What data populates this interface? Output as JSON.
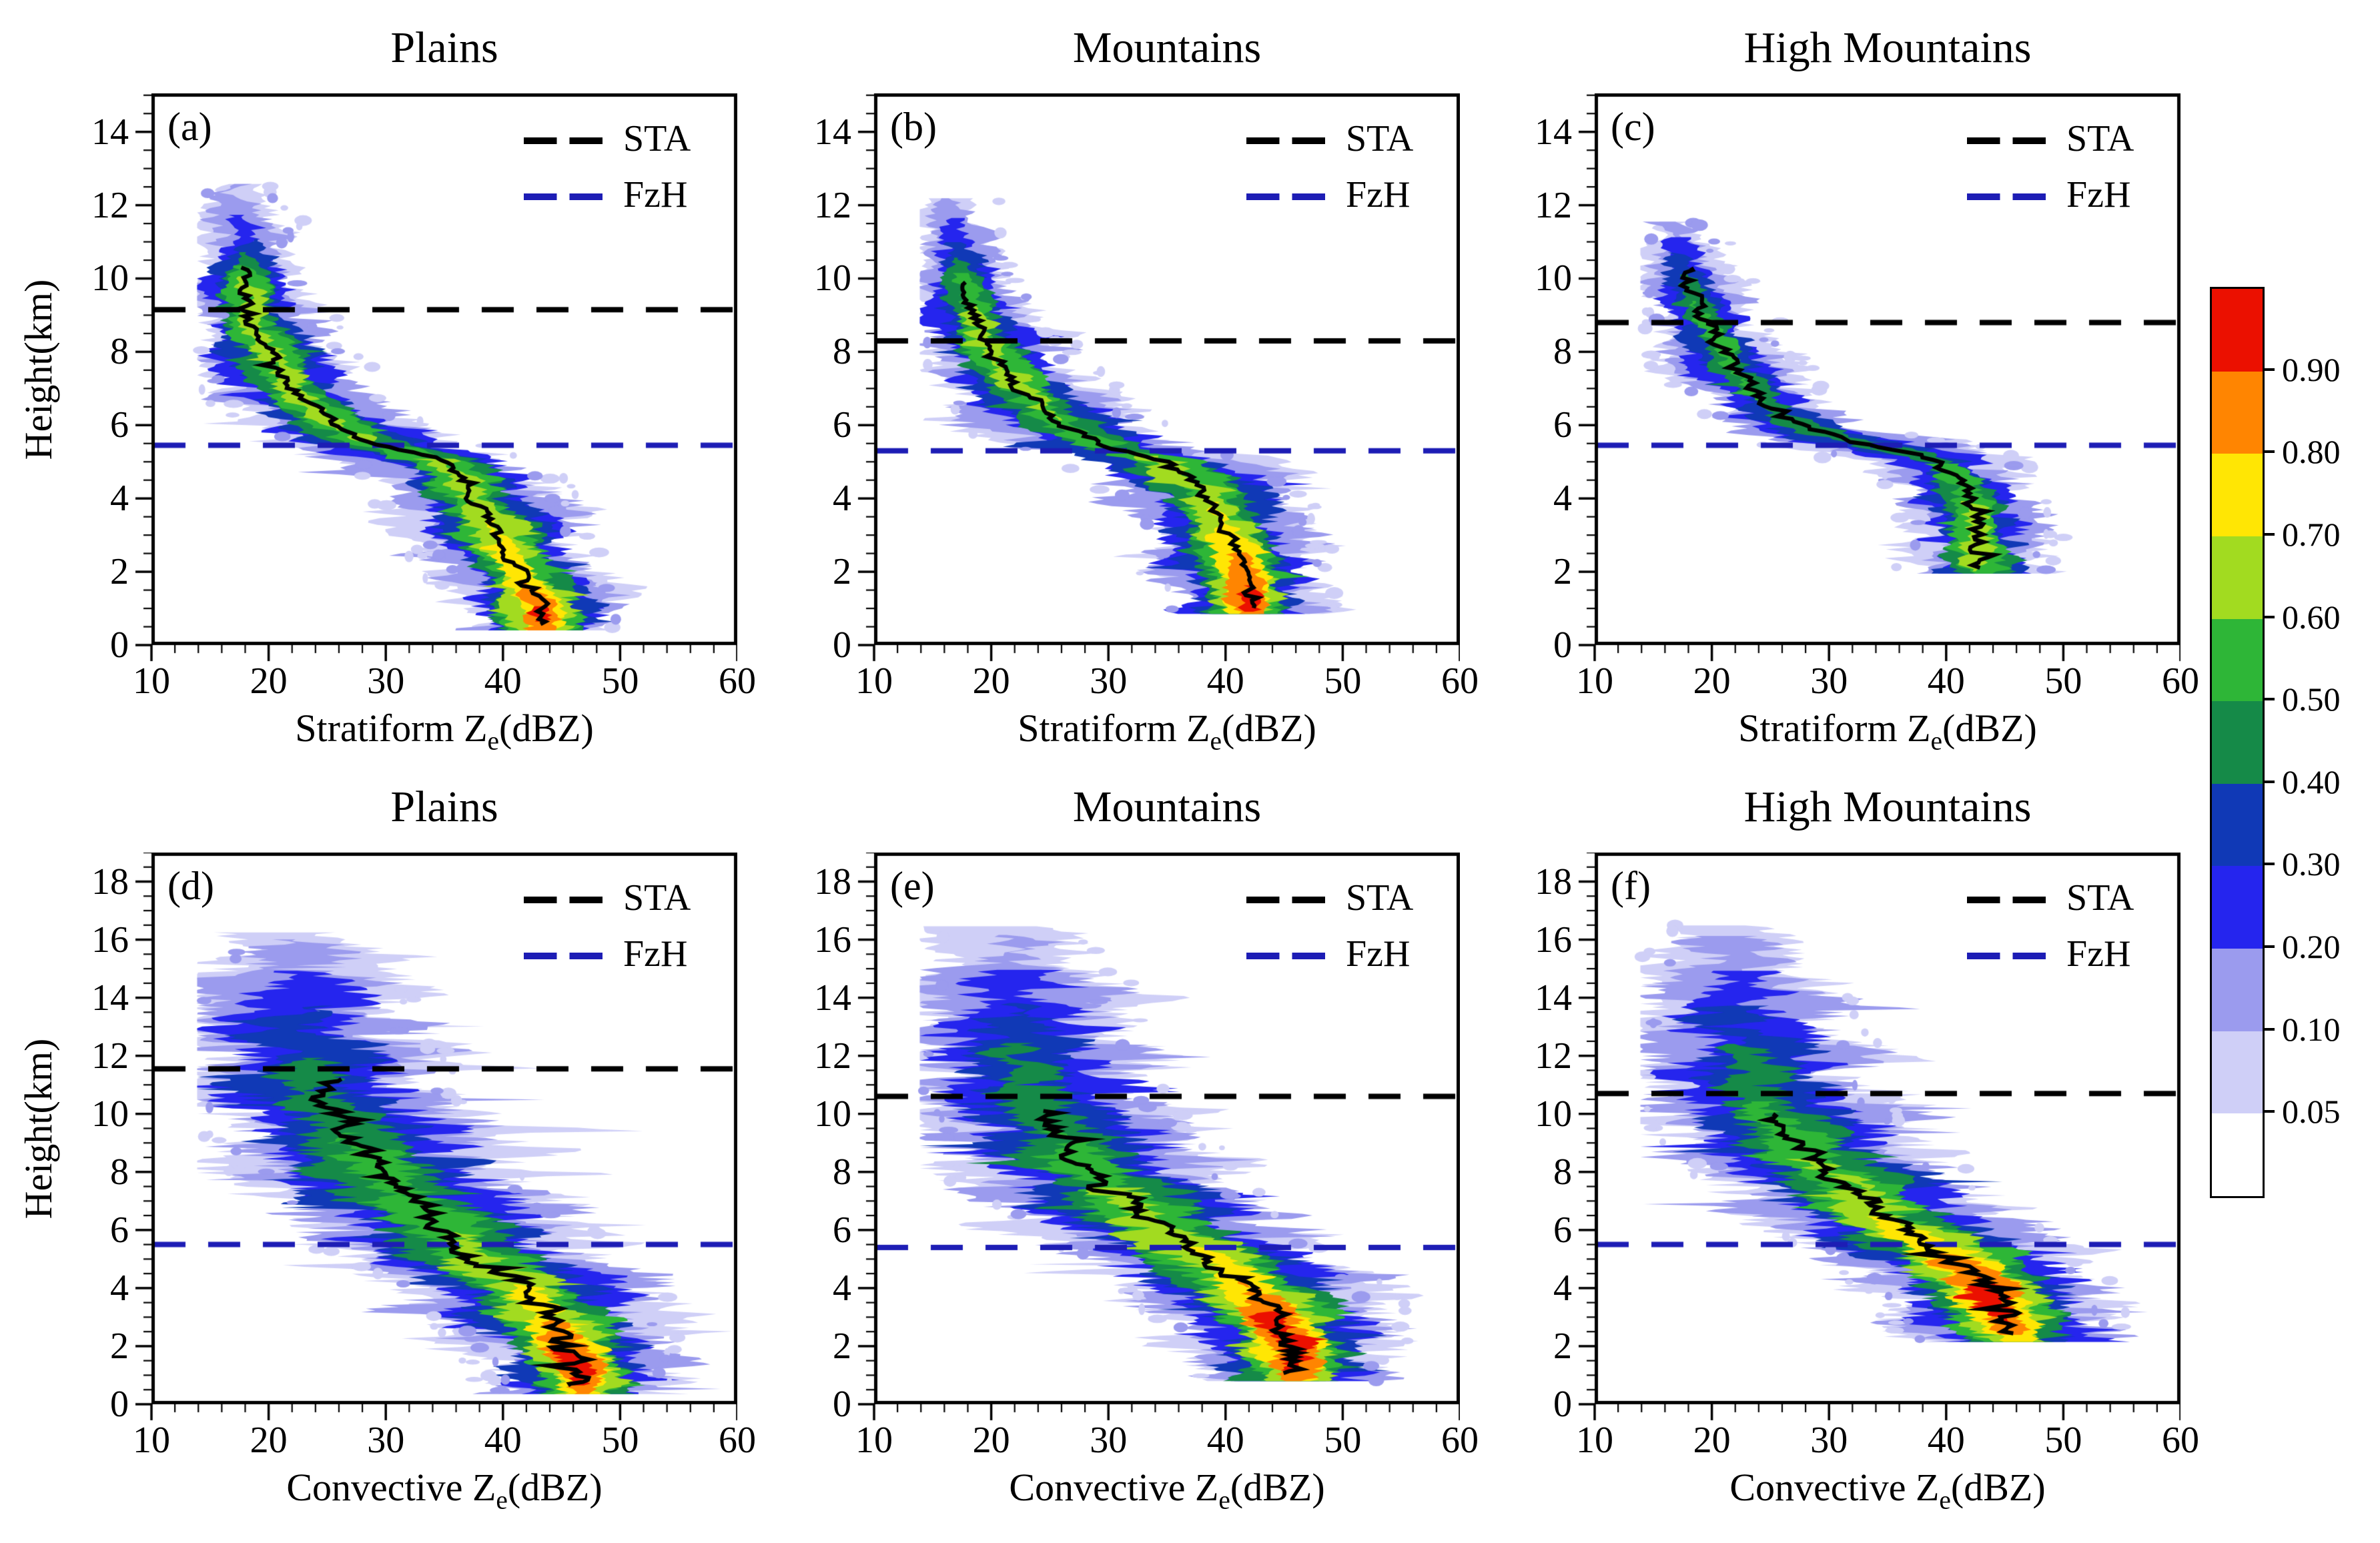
{
  "chart_data": {
    "type": "heatmap",
    "subtype": "contoured-frequency-by-altitude (CFAD) grid, 2 rows x 3 cols",
    "ylabel": "Height(km)",
    "x_axis_range": [
      10,
      60
    ],
    "x_tick_labels": [
      "10",
      "20",
      "30",
      "40",
      "50",
      "60"
    ],
    "rows": [
      {
        "y_tick_labels": [
          "0",
          "2",
          "4",
          "6",
          "8",
          "10",
          "12",
          "14"
        ],
        "y_display_max": 15.05
      },
      {
        "y_tick_labels": [
          "0",
          "2",
          "4",
          "6",
          "8",
          "10",
          "12",
          "14",
          "16",
          "18"
        ],
        "y_display_max": 19.0
      }
    ],
    "levels": [
      0.05,
      0.1,
      0.2,
      0.3,
      0.4,
      0.5,
      0.6,
      0.7,
      0.8,
      0.9
    ],
    "level_colors": [
      "#cfcff7",
      "#9b9bee",
      "#2525ee",
      "#1039b6",
      "#158a48",
      "#2eb637",
      "#a2db20",
      "#ffe604",
      "#ff8501",
      "#eb1000"
    ],
    "legend": {
      "sta_label": "STA",
      "fzh_label": "FzH",
      "sta_color": "#000000",
      "fzh_color": "#1d1db5"
    },
    "colorbar": {
      "tick_labels": [
        "0.90",
        "0.80",
        "0.70",
        "0.60",
        "0.50",
        "0.40",
        "0.30",
        "0.20",
        "0.10",
        "0.05"
      ],
      "band_colors_top_to_bottom": [
        "#eb1000",
        "#ff8501",
        "#ffe604",
        "#a2db20",
        "#2eb637",
        "#158a48",
        "#1039b6",
        "#2525ee",
        "#9b9bee",
        "#cfcff7",
        "#ffffff"
      ]
    },
    "panels": [
      {
        "id": "a",
        "letter": "(a)",
        "row": 0,
        "col": 0,
        "title": "Plains",
        "xlabel_parts": [
          "Stratiform Z",
          "e",
          "(dBZ)"
        ],
        "sta_km": 9.15,
        "fzh_km": 5.45,
        "seed": 101,
        "mode_line": {
          "top_km": 10.3,
          "bottom_km": 0.55,
          "jitter_db": 1.0
        },
        "profile": [
          [
            12.6,
            17.5,
            2.3,
            0.12
          ],
          [
            11.8,
            17.5,
            2.8,
            0.2
          ],
          [
            11.0,
            18.0,
            3.4,
            0.32
          ],
          [
            10.0,
            18.0,
            4.3,
            0.62
          ],
          [
            9.0,
            18.6,
            5.0,
            0.68
          ],
          [
            8.0,
            20.0,
            5.5,
            0.68
          ],
          [
            7.0,
            22.0,
            6.0,
            0.66
          ],
          [
            6.0,
            25.5,
            6.6,
            0.62
          ],
          [
            5.5,
            28.5,
            7.0,
            0.6
          ],
          [
            5.1,
            34.0,
            7.5,
            0.6
          ],
          [
            4.6,
            36.5,
            7.0,
            0.66
          ],
          [
            4.0,
            37.5,
            6.8,
            0.68
          ],
          [
            3.0,
            39.5,
            6.5,
            0.72
          ],
          [
            2.0,
            41.5,
            6.2,
            0.78
          ],
          [
            1.4,
            42.5,
            6.0,
            0.85
          ],
          [
            0.9,
            43.3,
            5.8,
            0.93
          ],
          [
            0.4,
            43.3,
            5.8,
            0.88
          ]
        ]
      },
      {
        "id": "b",
        "letter": "(b)",
        "row": 0,
        "col": 1,
        "title": "Mountains",
        "xlabel_parts": [
          "Stratiform Z",
          "e",
          "(dBZ)"
        ],
        "sta_km": 8.3,
        "fzh_km": 5.3,
        "seed": 202,
        "mode_line": {
          "top_km": 9.9,
          "bottom_km": 0.95,
          "jitter_db": 1.0
        },
        "profile": [
          [
            12.2,
            16.5,
            2.0,
            0.12
          ],
          [
            11.0,
            17.0,
            2.8,
            0.3
          ],
          [
            10.0,
            17.5,
            3.8,
            0.55
          ],
          [
            9.0,
            18.5,
            4.8,
            0.62
          ],
          [
            8.0,
            20.0,
            5.5,
            0.63
          ],
          [
            7.0,
            22.5,
            6.2,
            0.62
          ],
          [
            6.0,
            26.0,
            7.0,
            0.6
          ],
          [
            5.4,
            30.0,
            7.5,
            0.58
          ],
          [
            5.0,
            35.0,
            7.5,
            0.62
          ],
          [
            4.4,
            37.5,
            7.0,
            0.68
          ],
          [
            3.6,
            39.5,
            6.8,
            0.72
          ],
          [
            2.8,
            40.5,
            6.5,
            0.78
          ],
          [
            2.0,
            41.2,
            6.2,
            0.85
          ],
          [
            1.3,
            41.8,
            6.0,
            0.96
          ],
          [
            0.85,
            42.0,
            6.0,
            0.9
          ]
        ]
      },
      {
        "id": "c",
        "letter": "(c)",
        "row": 0,
        "col": 2,
        "title": "High Mountains",
        "xlabel_parts": [
          "Stratiform Z",
          "e",
          "(dBZ)"
        ],
        "sta_km": 8.8,
        "fzh_km": 5.45,
        "seed": 303,
        "mode_line": {
          "top_km": 10.3,
          "bottom_km": 2.1,
          "jitter_db": 1.3
        },
        "profile": [
          [
            11.6,
            16.5,
            2.0,
            0.1
          ],
          [
            10.5,
            17.5,
            3.0,
            0.35
          ],
          [
            9.5,
            18.5,
            3.6,
            0.5
          ],
          [
            8.5,
            20.0,
            4.2,
            0.52
          ],
          [
            7.5,
            22.0,
            4.8,
            0.52
          ],
          [
            6.5,
            25.0,
            5.2,
            0.5
          ],
          [
            5.9,
            28.0,
            5.5,
            0.45
          ],
          [
            5.5,
            33.0,
            7.0,
            0.42
          ],
          [
            5.0,
            39.5,
            6.0,
            0.5
          ],
          [
            4.4,
            41.5,
            5.2,
            0.58
          ],
          [
            3.6,
            42.3,
            5.0,
            0.62
          ],
          [
            2.8,
            42.8,
            5.0,
            0.66
          ],
          [
            1.95,
            43.0,
            5.5,
            0.6
          ]
        ]
      },
      {
        "id": "d",
        "letter": "(d)",
        "row": 1,
        "col": 0,
        "title": "Plains",
        "xlabel_parts": [
          "Convective Z",
          "e",
          "(dBZ)"
        ],
        "sta_km": 11.55,
        "fzh_km": 5.5,
        "seed": 404,
        "mode_line": {
          "top_km": 11.2,
          "bottom_km": 0.6,
          "jitter_db": 2.0
        },
        "profile": [
          [
            16.3,
            22.0,
            5.0,
            0.08
          ],
          [
            15.5,
            22.0,
            7.0,
            0.15
          ],
          [
            14.5,
            22.0,
            8.5,
            0.25
          ],
          [
            13.5,
            22.5,
            9.5,
            0.32
          ],
          [
            12.5,
            23.0,
            10.0,
            0.38
          ],
          [
            11.5,
            23.5,
            10.5,
            0.42
          ],
          [
            10.5,
            24.5,
            11.0,
            0.46
          ],
          [
            9.5,
            26.5,
            11.5,
            0.5
          ],
          [
            8.5,
            28.5,
            11.5,
            0.52
          ],
          [
            7.5,
            31.0,
            11.5,
            0.55
          ],
          [
            6.5,
            33.5,
            11.5,
            0.58
          ],
          [
            5.5,
            36.5,
            11.0,
            0.62
          ],
          [
            4.5,
            40.0,
            10.5,
            0.68
          ],
          [
            3.5,
            43.0,
            9.5,
            0.75
          ],
          [
            2.5,
            45.0,
            8.5,
            0.85
          ],
          [
            1.6,
            46.2,
            7.5,
            0.95
          ],
          [
            0.9,
            46.5,
            7.0,
            0.93
          ],
          [
            0.35,
            46.5,
            6.8,
            0.88
          ]
        ]
      },
      {
        "id": "e",
        "letter": "(e)",
        "row": 1,
        "col": 1,
        "title": "Mountains",
        "xlabel_parts": [
          "Convective Z",
          "e",
          "(dBZ)"
        ],
        "sta_km": 10.6,
        "fzh_km": 5.4,
        "seed": 505,
        "mode_line": {
          "top_km": 10.1,
          "bottom_km": 1.0,
          "jitter_db": 1.6
        },
        "profile": [
          [
            16.5,
            21.0,
            4.5,
            0.08
          ],
          [
            15.5,
            21.5,
            6.5,
            0.15
          ],
          [
            14.5,
            22.0,
            8.0,
            0.25
          ],
          [
            13.5,
            22.0,
            9.0,
            0.33
          ],
          [
            12.5,
            22.5,
            9.5,
            0.4
          ],
          [
            11.5,
            23.0,
            10.0,
            0.45
          ],
          [
            10.5,
            23.5,
            10.0,
            0.48
          ],
          [
            9.5,
            25.5,
            10.5,
            0.5
          ],
          [
            8.5,
            27.5,
            11.0,
            0.55
          ],
          [
            7.5,
            30.0,
            11.0,
            0.6
          ],
          [
            6.5,
            33.0,
            11.0,
            0.65
          ],
          [
            5.5,
            36.5,
            10.5,
            0.7
          ],
          [
            4.5,
            40.5,
            10.0,
            0.78
          ],
          [
            3.5,
            43.5,
            9.5,
            0.88
          ],
          [
            2.5,
            45.0,
            8.5,
            0.96
          ],
          [
            1.6,
            45.8,
            7.5,
            0.97
          ],
          [
            0.8,
            46.0,
            7.0,
            0.85
          ]
        ]
      },
      {
        "id": "f",
        "letter": "(f)",
        "row": 1,
        "col": 2,
        "title": "High Mountains",
        "xlabel_parts": [
          "Convective Z",
          "e",
          "(dBZ)"
        ],
        "sta_km": 10.7,
        "fzh_km": 5.5,
        "seed": 606,
        "mode_line": {
          "top_km": 10.0,
          "bottom_km": 2.4,
          "jitter_db": 1.8
        },
        "profile": [
          [
            16.5,
            21.0,
            4.0,
            0.08
          ],
          [
            15.5,
            21.5,
            6.0,
            0.15
          ],
          [
            14.5,
            22.0,
            7.5,
            0.25
          ],
          [
            13.5,
            22.5,
            8.5,
            0.32
          ],
          [
            12.5,
            23.0,
            9.0,
            0.4
          ],
          [
            11.5,
            23.5,
            9.5,
            0.45
          ],
          [
            10.5,
            24.5,
            9.5,
            0.5
          ],
          [
            9.5,
            26.0,
            10.0,
            0.55
          ],
          [
            8.5,
            28.5,
            10.0,
            0.6
          ],
          [
            7.5,
            31.5,
            10.0,
            0.65
          ],
          [
            6.5,
            34.5,
            10.0,
            0.7
          ],
          [
            5.5,
            38.5,
            10.0,
            0.78
          ],
          [
            4.6,
            42.0,
            9.5,
            0.88
          ],
          [
            3.8,
            44.0,
            9.0,
            0.96
          ],
          [
            3.0,
            45.0,
            8.5,
            0.95
          ],
          [
            2.15,
            45.5,
            7.5,
            0.75
          ]
        ]
      }
    ]
  }
}
